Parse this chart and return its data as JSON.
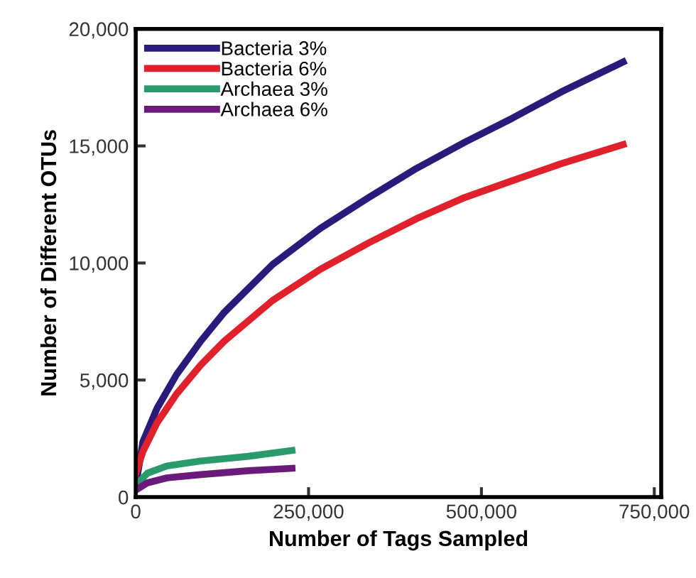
{
  "chart_data": {
    "type": "line",
    "xlabel": "Number of Tags Sampled",
    "ylabel": "Number of Different OTUs",
    "xlim": [
      0,
      760000
    ],
    "xticks": [
      0,
      {
        "value": 250000,
        "label": "250,000"
      },
      {
        "value": 500000,
        "label": "500,000"
      },
      {
        "value": 750000,
        "label": "750,000"
      }
    ],
    "ylim": [
      0,
      20000
    ],
    "yticks": [
      0,
      {
        "value": 5000,
        "label": "5,000"
      },
      {
        "value": 10000,
        "label": "10,000"
      },
      {
        "value": 15000,
        "label": "15,000"
      },
      {
        "value": 20000,
        "label": "20,000"
      }
    ],
    "grid": false,
    "legend": "top left",
    "marker": "none",
    "line_style": "solid",
    "series": [
      {
        "name": "Bacteria 3%",
        "color": "#2a1a7a",
        "x": [
          0,
          10400,
          31000,
          59000,
          94000,
          128000,
          198000,
          267000,
          337000,
          406000,
          476000,
          545000,
          615000,
          705000
        ],
        "values": [
          500,
          2360,
          3800,
          5230,
          6660,
          7890,
          9940,
          11480,
          12800,
          14040,
          15160,
          16190,
          17300,
          18590
        ]
      },
      {
        "name": "Bacteria 6%",
        "color": "#e0202a",
        "x": [
          0,
          10400,
          31000,
          59000,
          94000,
          128000,
          198000,
          267000,
          337000,
          406000,
          476000,
          545000,
          615000,
          705000
        ],
        "values": [
          1000,
          1950,
          3180,
          4400,
          5640,
          6660,
          8400,
          9730,
          10860,
          11890,
          12800,
          13520,
          14240,
          15060
        ]
      },
      {
        "name": "Archaea 3%",
        "color": "#2a9a6a",
        "x": [
          0,
          17000,
          45000,
          94000,
          163000,
          226000
        ],
        "values": [
          510,
          1020,
          1330,
          1540,
          1740,
          1990
        ]
      },
      {
        "name": "Archaea 6%",
        "color": "#6a1a7a",
        "x": [
          0,
          17000,
          45000,
          94000,
          163000,
          226000
        ],
        "values": [
          300,
          610,
          820,
          960,
          1130,
          1230
        ]
      }
    ]
  }
}
